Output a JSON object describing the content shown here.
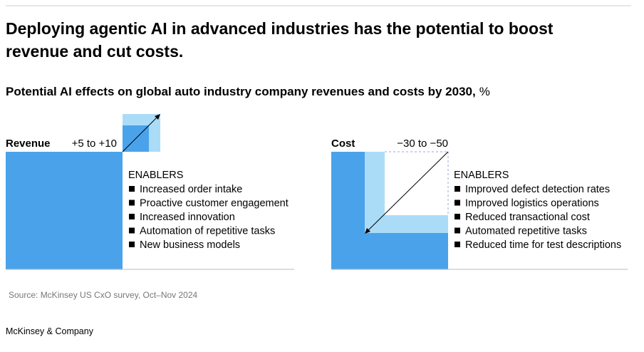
{
  "header": {
    "title_line_1": "Deploying agentic AI in advanced industries has the potential to boost",
    "title_line_2": "revenue and cut costs.",
    "subtitle": "Potential AI effects on global auto industry company revenues and costs by 2030,",
    "unit": "%"
  },
  "panels": [
    {
      "label": "Revenue",
      "range": "+5 to +10",
      "enablers_heading": "ENABLERS",
      "enablers": [
        "Increased order intake",
        "Proactive customer engagement",
        "Increased innovation",
        "Automation of repetitive tasks",
        "New business models"
      ]
    },
    {
      "label": "Cost",
      "range": "−30 to −50",
      "enablers_heading": "ENABLERS",
      "enablers": [
        "Improved defect detection rates",
        "Improved logistics operations",
        "Reduced transactional cost",
        "Automated repetitive tasks",
        "Reduced time for test descriptions"
      ]
    }
  ],
  "footer": {
    "source": "Source: McKinsey US CxO survey, Oct–Nov 2024",
    "brand": "McKinsey & Company"
  }
}
